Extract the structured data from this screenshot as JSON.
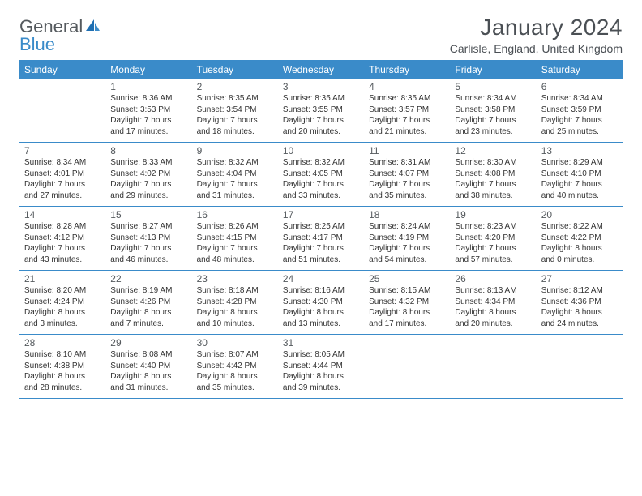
{
  "logo": {
    "part1": "General",
    "part2": "Blue"
  },
  "title": "January 2024",
  "location": "Carlisle, England, United Kingdom",
  "day_header_bg": "#3a8bc9",
  "day_header_text": "#ffffff",
  "border_color": "#3a8bc9",
  "body_text_color": "#333333",
  "title_color": "#4a4f54",
  "fontsize_title": 28,
  "fontsize_location": 14,
  "fontsize_dayhead": 12,
  "fontsize_daynum": 12,
  "fontsize_body": 10,
  "daynames": [
    "Sunday",
    "Monday",
    "Tuesday",
    "Wednesday",
    "Thursday",
    "Friday",
    "Saturday"
  ],
  "weeks": [
    [
      null,
      {
        "n": "1",
        "sr": "Sunrise: 8:36 AM",
        "ss": "Sunset: 3:53 PM",
        "d1": "Daylight: 7 hours",
        "d2": "and 17 minutes."
      },
      {
        "n": "2",
        "sr": "Sunrise: 8:35 AM",
        "ss": "Sunset: 3:54 PM",
        "d1": "Daylight: 7 hours",
        "d2": "and 18 minutes."
      },
      {
        "n": "3",
        "sr": "Sunrise: 8:35 AM",
        "ss": "Sunset: 3:55 PM",
        "d1": "Daylight: 7 hours",
        "d2": "and 20 minutes."
      },
      {
        "n": "4",
        "sr": "Sunrise: 8:35 AM",
        "ss": "Sunset: 3:57 PM",
        "d1": "Daylight: 7 hours",
        "d2": "and 21 minutes."
      },
      {
        "n": "5",
        "sr": "Sunrise: 8:34 AM",
        "ss": "Sunset: 3:58 PM",
        "d1": "Daylight: 7 hours",
        "d2": "and 23 minutes."
      },
      {
        "n": "6",
        "sr": "Sunrise: 8:34 AM",
        "ss": "Sunset: 3:59 PM",
        "d1": "Daylight: 7 hours",
        "d2": "and 25 minutes."
      }
    ],
    [
      {
        "n": "7",
        "sr": "Sunrise: 8:34 AM",
        "ss": "Sunset: 4:01 PM",
        "d1": "Daylight: 7 hours",
        "d2": "and 27 minutes."
      },
      {
        "n": "8",
        "sr": "Sunrise: 8:33 AM",
        "ss": "Sunset: 4:02 PM",
        "d1": "Daylight: 7 hours",
        "d2": "and 29 minutes."
      },
      {
        "n": "9",
        "sr": "Sunrise: 8:32 AM",
        "ss": "Sunset: 4:04 PM",
        "d1": "Daylight: 7 hours",
        "d2": "and 31 minutes."
      },
      {
        "n": "10",
        "sr": "Sunrise: 8:32 AM",
        "ss": "Sunset: 4:05 PM",
        "d1": "Daylight: 7 hours",
        "d2": "and 33 minutes."
      },
      {
        "n": "11",
        "sr": "Sunrise: 8:31 AM",
        "ss": "Sunset: 4:07 PM",
        "d1": "Daylight: 7 hours",
        "d2": "and 35 minutes."
      },
      {
        "n": "12",
        "sr": "Sunrise: 8:30 AM",
        "ss": "Sunset: 4:08 PM",
        "d1": "Daylight: 7 hours",
        "d2": "and 38 minutes."
      },
      {
        "n": "13",
        "sr": "Sunrise: 8:29 AM",
        "ss": "Sunset: 4:10 PM",
        "d1": "Daylight: 7 hours",
        "d2": "and 40 minutes."
      }
    ],
    [
      {
        "n": "14",
        "sr": "Sunrise: 8:28 AM",
        "ss": "Sunset: 4:12 PM",
        "d1": "Daylight: 7 hours",
        "d2": "and 43 minutes."
      },
      {
        "n": "15",
        "sr": "Sunrise: 8:27 AM",
        "ss": "Sunset: 4:13 PM",
        "d1": "Daylight: 7 hours",
        "d2": "and 46 minutes."
      },
      {
        "n": "16",
        "sr": "Sunrise: 8:26 AM",
        "ss": "Sunset: 4:15 PM",
        "d1": "Daylight: 7 hours",
        "d2": "and 48 minutes."
      },
      {
        "n": "17",
        "sr": "Sunrise: 8:25 AM",
        "ss": "Sunset: 4:17 PM",
        "d1": "Daylight: 7 hours",
        "d2": "and 51 minutes."
      },
      {
        "n": "18",
        "sr": "Sunrise: 8:24 AM",
        "ss": "Sunset: 4:19 PM",
        "d1": "Daylight: 7 hours",
        "d2": "and 54 minutes."
      },
      {
        "n": "19",
        "sr": "Sunrise: 8:23 AM",
        "ss": "Sunset: 4:20 PM",
        "d1": "Daylight: 7 hours",
        "d2": "and 57 minutes."
      },
      {
        "n": "20",
        "sr": "Sunrise: 8:22 AM",
        "ss": "Sunset: 4:22 PM",
        "d1": "Daylight: 8 hours",
        "d2": "and 0 minutes."
      }
    ],
    [
      {
        "n": "21",
        "sr": "Sunrise: 8:20 AM",
        "ss": "Sunset: 4:24 PM",
        "d1": "Daylight: 8 hours",
        "d2": "and 3 minutes."
      },
      {
        "n": "22",
        "sr": "Sunrise: 8:19 AM",
        "ss": "Sunset: 4:26 PM",
        "d1": "Daylight: 8 hours",
        "d2": "and 7 minutes."
      },
      {
        "n": "23",
        "sr": "Sunrise: 8:18 AM",
        "ss": "Sunset: 4:28 PM",
        "d1": "Daylight: 8 hours",
        "d2": "and 10 minutes."
      },
      {
        "n": "24",
        "sr": "Sunrise: 8:16 AM",
        "ss": "Sunset: 4:30 PM",
        "d1": "Daylight: 8 hours",
        "d2": "and 13 minutes."
      },
      {
        "n": "25",
        "sr": "Sunrise: 8:15 AM",
        "ss": "Sunset: 4:32 PM",
        "d1": "Daylight: 8 hours",
        "d2": "and 17 minutes."
      },
      {
        "n": "26",
        "sr": "Sunrise: 8:13 AM",
        "ss": "Sunset: 4:34 PM",
        "d1": "Daylight: 8 hours",
        "d2": "and 20 minutes."
      },
      {
        "n": "27",
        "sr": "Sunrise: 8:12 AM",
        "ss": "Sunset: 4:36 PM",
        "d1": "Daylight: 8 hours",
        "d2": "and 24 minutes."
      }
    ],
    [
      {
        "n": "28",
        "sr": "Sunrise: 8:10 AM",
        "ss": "Sunset: 4:38 PM",
        "d1": "Daylight: 8 hours",
        "d2": "and 28 minutes."
      },
      {
        "n": "29",
        "sr": "Sunrise: 8:08 AM",
        "ss": "Sunset: 4:40 PM",
        "d1": "Daylight: 8 hours",
        "d2": "and 31 minutes."
      },
      {
        "n": "30",
        "sr": "Sunrise: 8:07 AM",
        "ss": "Sunset: 4:42 PM",
        "d1": "Daylight: 8 hours",
        "d2": "and 35 minutes."
      },
      {
        "n": "31",
        "sr": "Sunrise: 8:05 AM",
        "ss": "Sunset: 4:44 PM",
        "d1": "Daylight: 8 hours",
        "d2": "and 39 minutes."
      },
      null,
      null,
      null
    ]
  ]
}
